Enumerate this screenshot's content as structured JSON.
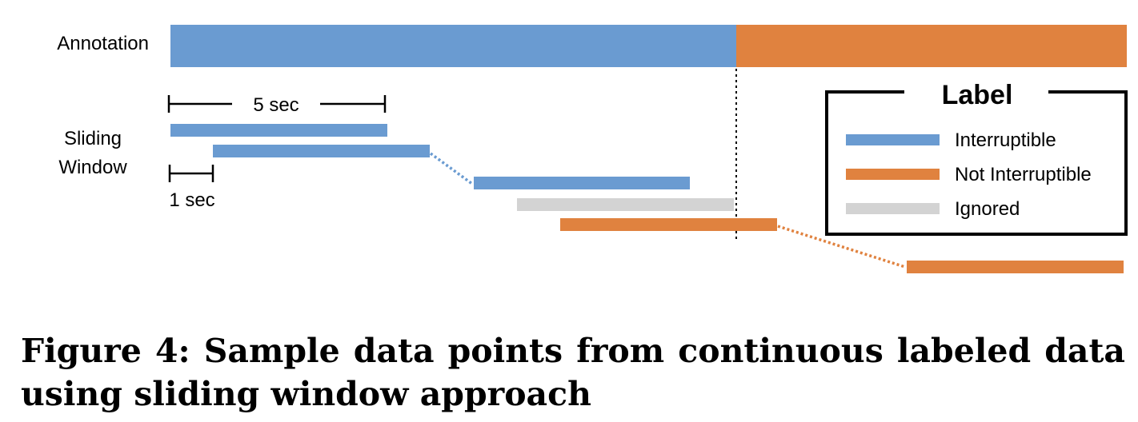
{
  "figure": {
    "annotation_label": "Annotation",
    "sliding_label_line1": "Sliding",
    "sliding_label_line2": "Window",
    "window_length_label": "5 sec",
    "step_label": "1 sec"
  },
  "legend": {
    "title": "Label",
    "items": [
      {
        "label": "Interruptible",
        "color": "#6a9bd1"
      },
      {
        "label": "Not Interruptible",
        "color": "#e0823f"
      },
      {
        "label": "Ignored",
        "color": "#d3d3d3"
      }
    ]
  },
  "colors": {
    "interruptible": "#6a9bd1",
    "not_interruptible": "#e0823f",
    "ignored": "#d3d3d3"
  },
  "caption": "Figure 4: Sample data points from continuous labeled data using sliding window approach"
}
